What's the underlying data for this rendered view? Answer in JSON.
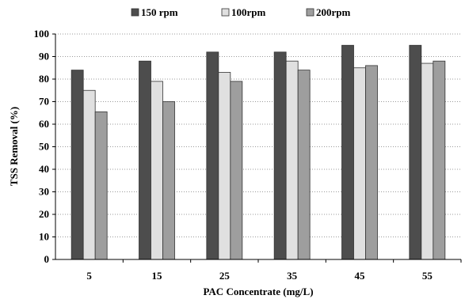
{
  "chart_data": {
    "type": "bar",
    "categories": [
      "5",
      "15",
      "25",
      "35",
      "45",
      "55"
    ],
    "series": [
      {
        "name": "150 rpm",
        "color": "#4d4d4d",
        "values": [
          84,
          88,
          92,
          92,
          95,
          95
        ]
      },
      {
        "name": "100rpm",
        "color": "#e0e0e0",
        "values": [
          75,
          79,
          83,
          88,
          85,
          87
        ]
      },
      {
        "name": "200rpm",
        "color": "#9e9e9e",
        "values": [
          65.5,
          70,
          79,
          84,
          86,
          88
        ]
      }
    ],
    "xlabel": "PAC Concentrate (mg/L)",
    "ylabel": "TSS Removal (%)",
    "ylim": [
      0,
      100
    ],
    "yticks": [
      0,
      10,
      20,
      30,
      40,
      50,
      60,
      70,
      80,
      90,
      100
    ],
    "grid": true,
    "legend_position": "top"
  }
}
